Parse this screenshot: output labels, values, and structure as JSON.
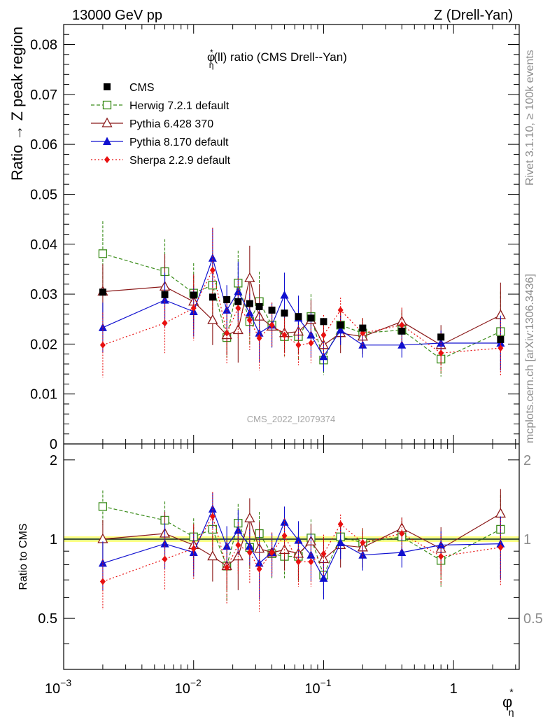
{
  "header": {
    "left": "13000 GeV pp",
    "right": "Z (Drell-Yan)"
  },
  "side_labels": {
    "rivet": "Rivet 3.1.10, ≥ 100k events",
    "mcplots": "mcplots.cern.ch [arXiv:1306.3436]"
  },
  "watermark": "CMS_2022_I2079374",
  "colors": {
    "cms": "#000000",
    "herwig": "#3a8c1a",
    "pythia6": "#8b1a1a",
    "pythia8": "#1010d0",
    "sherpa": "#e81010",
    "band_yellow": "#ffff80",
    "band_green": "#bde89a"
  },
  "chart_data": [
    {
      "type": "scatter",
      "title": "φ*η(ll) ratio (CMS Drell--Yan)",
      "title_parts": {
        "phi": "φ",
        "sup": "*",
        "sub": "η",
        "rest": "(ll) ratio (CMS Drell--Yan)"
      },
      "ylabel": "Ratio → Z peak region",
      "xlabel": "φ*η",
      "xscale": "log",
      "xlim": [
        0.001,
        3.2
      ],
      "ylim": [
        0,
        0.084
      ],
      "yticks": [
        0,
        0.01,
        0.02,
        0.03,
        0.04,
        0.05,
        0.06,
        0.07,
        0.08
      ],
      "ytick_labels": [
        "0",
        "0.01",
        "0.02",
        "0.03",
        "0.04",
        "0.05",
        "0.06",
        "0.07",
        "0.08"
      ],
      "legend_position": "top-left",
      "x": [
        0.002,
        0.006,
        0.01,
        0.014,
        0.018,
        0.022,
        0.027,
        0.032,
        0.04,
        0.05,
        0.064,
        0.08,
        0.1,
        0.135,
        0.2,
        0.4,
        0.8,
        2.3
      ],
      "series": [
        {
          "name": "CMS",
          "key": "cms",
          "marker": "square-filled",
          "line": "none",
          "values": [
            0.0304,
            0.0299,
            0.0298,
            0.0294,
            0.0289,
            0.0285,
            0.0281,
            0.0275,
            0.0268,
            0.0262,
            0.0255,
            0.0252,
            0.0245,
            0.0238,
            0.0232,
            0.0226,
            0.0214,
            0.0209
          ],
          "errors": [
            0.0003,
            0.0003,
            0.0003,
            0.0003,
            0.0003,
            0.0003,
            0.0003,
            0.0003,
            0.0003,
            0.0003,
            0.0003,
            0.0003,
            0.0003,
            0.0003,
            0.0003,
            0.0003,
            0.0003,
            0.0003
          ]
        },
        {
          "name": "Herwig 7.2.1 default",
          "key": "herwig",
          "marker": "square-open",
          "line": "dashed",
          "values": [
            0.0381,
            0.0345,
            0.0302,
            0.0318,
            0.0213,
            0.0322,
            0.0245,
            0.0285,
            0.0238,
            0.0215,
            0.0215,
            0.0255,
            0.0168,
            0.0238,
            0.0222,
            0.0228,
            0.017,
            0.0225
          ],
          "errors": [
            0.0065,
            0.0065,
            0.006,
            0.0065,
            0.004,
            0.0065,
            0.0045,
            0.006,
            0.0045,
            0.004,
            0.0045,
            0.0045,
            0.003,
            0.0035,
            0.003,
            0.0035,
            0.0035,
            0.008
          ]
        },
        {
          "name": "Pythia 6.428 370",
          "key": "pythia6",
          "marker": "triangle-open",
          "line": "solid",
          "values": [
            0.0305,
            0.0315,
            0.0285,
            0.0248,
            0.0218,
            0.0228,
            0.0332,
            0.0255,
            0.0235,
            0.0222,
            0.0225,
            0.0248,
            0.0198,
            0.0222,
            0.0215,
            0.0245,
            0.0198,
            0.0258
          ],
          "errors": [
            0.0055,
            0.0065,
            0.0055,
            0.005,
            0.004,
            0.0065,
            0.0065,
            0.0065,
            0.004,
            0.004,
            0.0045,
            0.004,
            0.0045,
            0.004,
            0.0035,
            0.0025,
            0.004,
            0.0065
          ]
        },
        {
          "name": "Pythia 8.170 default",
          "key": "pythia8",
          "marker": "triangle-filled",
          "line": "solid",
          "values": [
            0.0233,
            0.0288,
            0.0265,
            0.0372,
            0.0268,
            0.0305,
            0.0262,
            0.0222,
            0.0238,
            0.0298,
            0.0252,
            0.0218,
            0.0175,
            0.0228,
            0.0198,
            0.0198,
            0.0202,
            0.0202
          ],
          "errors": [
            0.005,
            0.0055,
            0.005,
            0.006,
            0.005,
            0.006,
            0.004,
            0.006,
            0.0045,
            0.0045,
            0.0045,
            0.0045,
            0.003,
            0.003,
            0.0025,
            0.0025,
            0.0025,
            0.0055
          ]
        },
        {
          "name": "Sherpa 2.2.9 default",
          "key": "sherpa",
          "marker": "diamond-filled",
          "line": "dotted",
          "values": [
            0.0198,
            0.0242,
            0.0272,
            0.0348,
            0.0222,
            0.0272,
            0.0248,
            0.0212,
            0.0238,
            0.0218,
            0.0198,
            0.0202,
            0.0218,
            0.0268,
            0.0222,
            0.0238,
            0.0182,
            0.0192
          ],
          "errors": [
            0.0065,
            0.006,
            0.0065,
            0.0085,
            0.006,
            0.006,
            0.006,
            0.0065,
            0.0045,
            0.0045,
            0.004,
            0.004,
            0.004,
            0.0025,
            0.003,
            0.0035,
            0.004,
            0.0055
          ]
        }
      ]
    },
    {
      "type": "scatter",
      "ylabel": "Ratio to CMS",
      "xscale": "log",
      "xlim": [
        0.001,
        3.2
      ],
      "ylim": [
        0.32,
        2.3
      ],
      "yticks": [
        0.5,
        1,
        2
      ],
      "ytick_labels": [
        "0.5",
        "1",
        "2"
      ],
      "xticks": [
        0.001,
        0.01,
        0.1,
        1
      ],
      "xtick_labels": [
        {
          "base": "10",
          "exp": "−3"
        },
        {
          "base": "10",
          "exp": "−2"
        },
        {
          "base": "10",
          "exp": "−1"
        },
        {
          "base": "1",
          "exp": ""
        }
      ],
      "reference_band": {
        "center": 1.0,
        "half_width_inner": 0.01,
        "half_width_outer": 0.025
      },
      "x": [
        0.002,
        0.006,
        0.01,
        0.014,
        0.018,
        0.022,
        0.027,
        0.032,
        0.04,
        0.05,
        0.064,
        0.08,
        0.1,
        0.135,
        0.2,
        0.4,
        0.8,
        2.3
      ],
      "series": [
        {
          "key": "herwig",
          "marker": "square-open",
          "line": "dashed",
          "values": [
            1.33,
            1.18,
            1.02,
            1.09,
            0.79,
            1.15,
            0.93,
            1.05,
            0.88,
            0.86,
            0.86,
            1.01,
            0.73,
            1.02,
            0.97,
            1.02,
            0.83,
            1.09
          ],
          "errors": [
            0.2,
            0.21,
            0.18,
            0.21,
            0.21,
            0.21,
            0.17,
            0.22,
            0.17,
            0.15,
            0.17,
            0.18,
            0.12,
            0.15,
            0.13,
            0.15,
            0.17,
            0.38
          ]
        },
        {
          "key": "pythia6",
          "marker": "triangle-open",
          "line": "solid",
          "values": [
            1.0,
            1.05,
            0.95,
            0.86,
            0.79,
            0.86,
            1.2,
            0.92,
            0.89,
            0.91,
            0.88,
            0.98,
            0.84,
            0.95,
            0.93,
            1.1,
            0.92,
            1.25
          ],
          "errors": [
            0.18,
            0.22,
            0.18,
            0.17,
            0.15,
            0.22,
            0.23,
            0.24,
            0.15,
            0.15,
            0.18,
            0.16,
            0.18,
            0.17,
            0.15,
            0.11,
            0.19,
            0.3
          ]
        },
        {
          "key": "pythia8",
          "marker": "triangle-filled",
          "line": "solid",
          "values": [
            0.81,
            0.96,
            0.89,
            1.3,
            0.94,
            1.08,
            0.94,
            0.81,
            0.89,
            1.16,
            0.99,
            0.87,
            0.71,
            0.97,
            0.87,
            0.89,
            0.95,
            0.96
          ],
          "errors": [
            0.17,
            0.19,
            0.17,
            0.2,
            0.18,
            0.21,
            0.15,
            0.22,
            0.17,
            0.17,
            0.18,
            0.18,
            0.12,
            0.13,
            0.11,
            0.11,
            0.12,
            0.26
          ]
        },
        {
          "key": "sherpa",
          "marker": "diamond-filled",
          "line": "dotted",
          "values": [
            0.69,
            0.84,
            0.92,
            1.22,
            0.78,
            0.95,
            0.89,
            0.77,
            0.89,
            1.03,
            0.82,
            0.82,
            0.88,
            1.14,
            0.97,
            1.05,
            0.86,
            0.93
          ],
          "errors": [
            0.15,
            0.2,
            0.22,
            0.29,
            0.21,
            0.21,
            0.21,
            0.24,
            0.17,
            0.17,
            0.16,
            0.16,
            0.16,
            0.1,
            0.13,
            0.15,
            0.19,
            0.26
          ]
        }
      ]
    }
  ]
}
